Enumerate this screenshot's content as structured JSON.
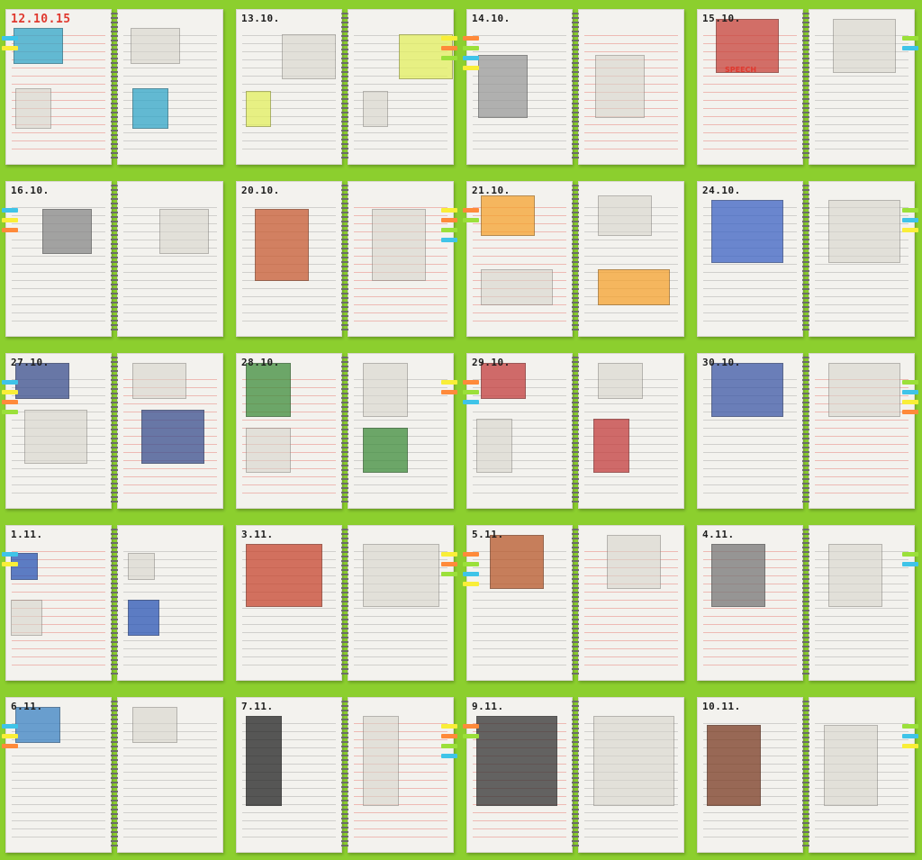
{
  "spreads": [
    {
      "date": "12.10.15",
      "date_style": "red",
      "left_caption": "",
      "right_caption": "",
      "accent": "#32a6c9"
    },
    {
      "date": "13.10.",
      "date_style": "dark",
      "left_caption": "",
      "right_caption": "",
      "accent": "#e3f060"
    },
    {
      "date": "14.10.",
      "date_style": "dark",
      "left_caption": "",
      "right_caption": "",
      "accent": "#9a9a9a"
    },
    {
      "date": "15.10.",
      "date_style": "dark",
      "left_caption": "SPEECH",
      "right_caption": "",
      "accent": "#c8433a"
    },
    {
      "date": "16.10.",
      "date_style": "dark",
      "left_caption": "",
      "right_caption": "",
      "accent": "#888888"
    },
    {
      "date": "20.10.",
      "date_style": "dark",
      "left_caption": "",
      "right_caption": "",
      "accent": "#c85b32"
    },
    {
      "date": "21.10.",
      "date_style": "dark",
      "left_caption": "",
      "right_caption": "",
      "accent": "#f6a22e"
    },
    {
      "date": "24.10.",
      "date_style": "dark",
      "left_caption": "",
      "right_caption": "",
      "accent": "#3d63c4"
    },
    {
      "date": "27.10.",
      "date_style": "dark",
      "left_caption": "",
      "right_caption": "",
      "accent": "#3a4f8f"
    },
    {
      "date": "28.10.",
      "date_style": "dark",
      "left_caption": "",
      "right_caption": "",
      "accent": "#3f8d3c"
    },
    {
      "date": "29.10.",
      "date_style": "dark",
      "left_caption": "",
      "right_caption": "",
      "accent": "#c43d3d"
    },
    {
      "date": "30.10.",
      "date_style": "dark",
      "left_caption": "",
      "right_caption": "",
      "accent": "#3d58a6"
    },
    {
      "date": "1.11.",
      "date_style": "dark",
      "left_caption": "",
      "right_caption": "",
      "accent": "#2a55b5"
    },
    {
      "date": "3.11.",
      "date_style": "dark",
      "left_caption": "",
      "right_caption": "",
      "accent": "#c7452e"
    },
    {
      "date": "5.11.",
      "date_style": "dark",
      "left_caption": "",
      "right_caption": "",
      "accent": "#b8582a"
    },
    {
      "date": "4.11.",
      "date_style": "dark",
      "left_caption": "",
      "right_caption": "",
      "accent": "#777777"
    },
    {
      "date": "6.11.",
      "date_style": "dark",
      "left_caption": "",
      "right_caption": "",
      "accent": "#3b82c4"
    },
    {
      "date": "7.11.",
      "date_style": "dark",
      "left_caption": "",
      "right_caption": "",
      "accent": "#222222"
    },
    {
      "date": "9.11.",
      "date_style": "dark",
      "left_caption": "",
      "right_caption": "",
      "accent": "#333333"
    },
    {
      "date": "10.11.",
      "date_style": "dark",
      "left_caption": "",
      "right_caption": "",
      "accent": "#7a3b22"
    }
  ],
  "colors": {
    "background": "#8ccf2e",
    "paper": "#f3f2ee",
    "ink_red": "#e0392f",
    "tab_colors": [
      "#3fc4e8",
      "#f9ee38",
      "#ff8a3a",
      "#9be03a"
    ]
  }
}
